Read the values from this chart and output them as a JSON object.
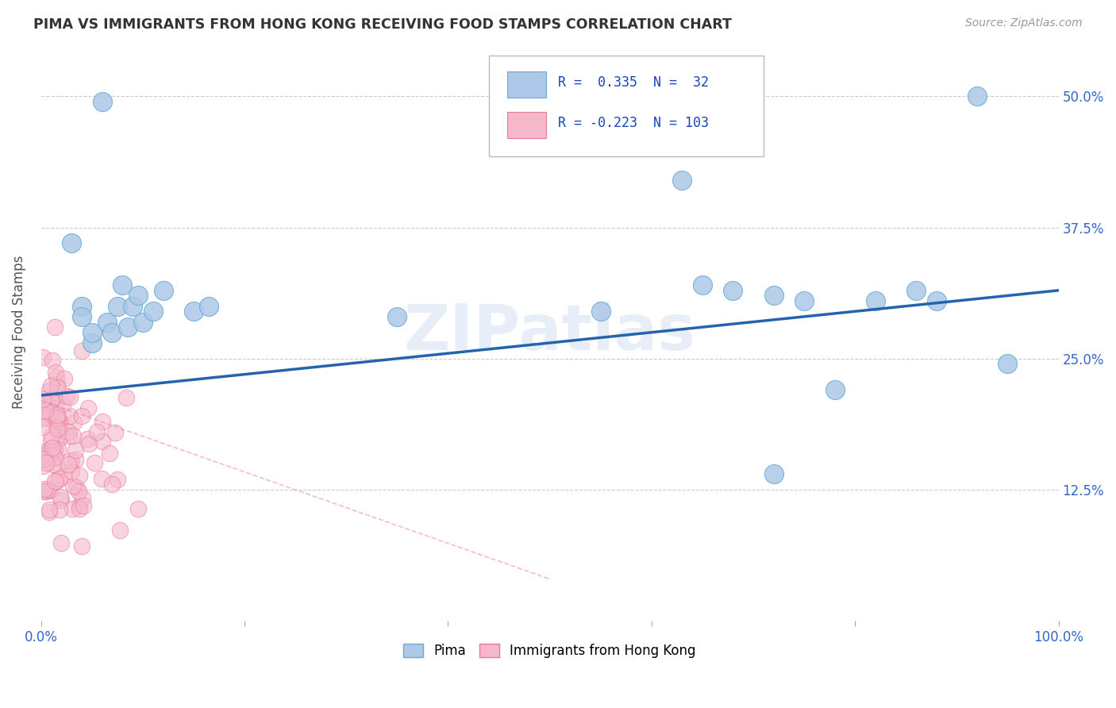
{
  "title": "PIMA VS IMMIGRANTS FROM HONG KONG RECEIVING FOOD STAMPS CORRELATION CHART",
  "source": "Source: ZipAtlas.com",
  "ylabel": "Receiving Food Stamps",
  "watermark": "ZIPatlas",
  "xlim": [
    0.0,
    1.0
  ],
  "ylim": [
    0.0,
    0.55
  ],
  "yticks": [
    0.0,
    0.125,
    0.25,
    0.375,
    0.5
  ],
  "ytick_labels": [
    "",
    "12.5%",
    "25.0%",
    "37.5%",
    "50.0%"
  ],
  "xticks": [
    0.0,
    0.2,
    0.4,
    0.6,
    0.8,
    1.0
  ],
  "xtick_labels": [
    "0.0%",
    "",
    "",
    "",
    "",
    "100.0%"
  ],
  "pima_R": 0.335,
  "pima_N": 32,
  "hk_R": -0.223,
  "hk_N": 103,
  "pima_color": "#adc8e8",
  "pima_edge_color": "#6aaad4",
  "hk_color": "#f5b8cb",
  "hk_edge_color": "#e8789a",
  "trend_blue": "#2464ae",
  "trend_pink": "#e87aaa",
  "legend_R_color": "#1a44bb",
  "legend_N_color": "#1a44bb",
  "background": "#ffffff",
  "grid_color": "#cccccc",
  "title_color": "#333333",
  "pima_points_x": [
    0.03,
    0.06,
    0.04,
    0.05,
    0.04,
    0.05,
    0.065,
    0.075,
    0.07,
    0.08,
    0.085,
    0.09,
    0.095,
    0.1,
    0.11,
    0.12,
    0.15,
    0.165,
    0.35,
    0.55,
    0.63,
    0.65,
    0.68,
    0.72,
    0.75,
    0.78,
    0.82,
    0.86,
    0.88,
    0.92,
    0.95,
    0.72
  ],
  "pima_points_y": [
    0.36,
    0.495,
    0.3,
    0.265,
    0.29,
    0.275,
    0.285,
    0.3,
    0.275,
    0.32,
    0.28,
    0.3,
    0.31,
    0.285,
    0.295,
    0.315,
    0.295,
    0.3,
    0.29,
    0.295,
    0.42,
    0.32,
    0.315,
    0.31,
    0.305,
    0.22,
    0.305,
    0.315,
    0.305,
    0.5,
    0.245,
    0.14
  ],
  "blue_trend_x0": 0.0,
  "blue_trend_y0": 0.215,
  "blue_trend_x1": 1.0,
  "blue_trend_y1": 0.315,
  "pink_trend_x0": 0.0,
  "pink_trend_y0": 0.21,
  "pink_trend_x1": 0.5,
  "pink_trend_y1": 0.04
}
